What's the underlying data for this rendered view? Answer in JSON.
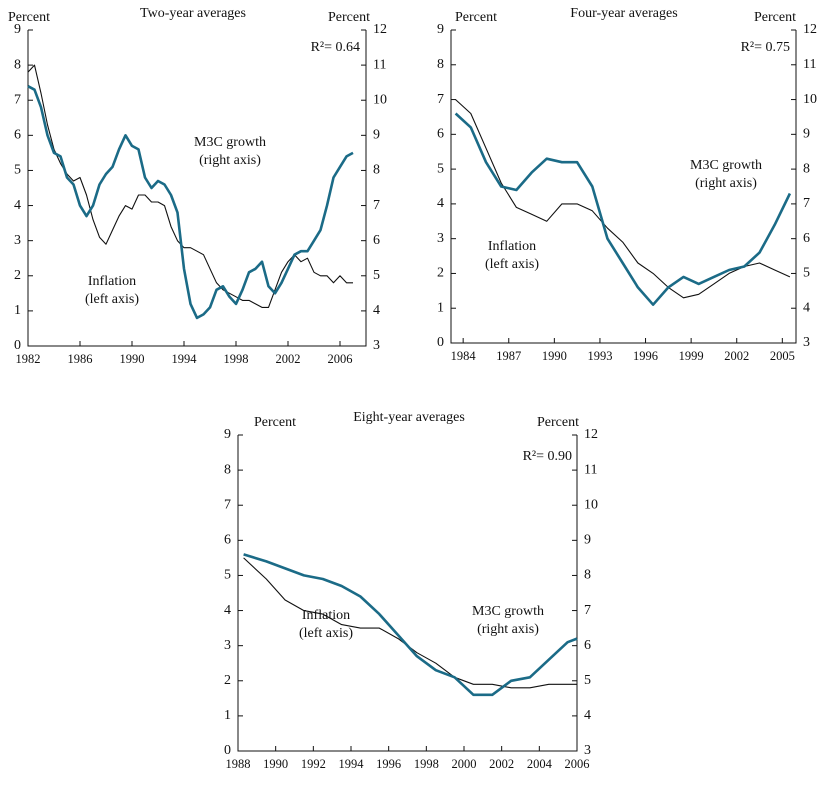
{
  "chart_data": [
    {
      "type": "line",
      "title": "Two-year averages",
      "ylabel": "Percent",
      "y2label": "Percent",
      "annotation": "R²= 0.64",
      "xlim": [
        1982,
        2008
      ],
      "xticks": [
        1982,
        1986,
        1990,
        1994,
        1998,
        2002,
        2006
      ],
      "ylim": [
        0,
        9
      ],
      "yticks": [
        0,
        1,
        2,
        3,
        4,
        5,
        6,
        7,
        8,
        9
      ],
      "y2lim": [
        3,
        12
      ],
      "y2ticks": [
        3,
        4,
        5,
        6,
        7,
        8,
        9,
        10,
        11,
        12
      ],
      "x": [
        1982,
        1982.5,
        1983,
        1983.5,
        1984,
        1984.5,
        1985,
        1985.5,
        1986,
        1986.5,
        1987,
        1987.5,
        1988,
        1988.5,
        1989,
        1989.5,
        1990,
        1990.5,
        1991,
        1991.5,
        1992,
        1992.5,
        1993,
        1993.5,
        1994,
        1994.5,
        1995,
        1995.5,
        1996,
        1996.5,
        1997,
        1997.5,
        1998,
        1998.5,
        1999,
        1999.5,
        2000,
        2000.5,
        2001,
        2001.5,
        2002,
        2002.5,
        2003,
        2003.5,
        2004,
        2004.5,
        2005,
        2005.5,
        2006,
        2006.5,
        2007
      ],
      "series": [
        {
          "name": "Inflation",
          "note": "(left axis)",
          "color": "#111111",
          "axis": "y",
          "values": [
            7.8,
            8.0,
            7.2,
            6.3,
            5.6,
            5.2,
            4.9,
            4.7,
            4.8,
            4.3,
            3.6,
            3.1,
            2.9,
            3.3,
            3.7,
            4.0,
            3.9,
            4.3,
            4.3,
            4.1,
            4.1,
            4.0,
            3.4,
            3.0,
            2.8,
            2.8,
            2.7,
            2.6,
            2.2,
            1.8,
            1.6,
            1.5,
            1.4,
            1.3,
            1.3,
            1.2,
            1.1,
            1.1,
            1.6,
            2.1,
            2.4,
            2.6,
            2.4,
            2.5,
            2.1,
            2.0,
            2.0,
            1.8,
            2.0,
            1.8,
            1.8
          ]
        },
        {
          "name": "M3C growth",
          "note": "(right axis)",
          "color": "#1b6b87",
          "axis": "y2",
          "values": [
            10.4,
            10.3,
            9.8,
            9.0,
            8.5,
            8.4,
            7.8,
            7.6,
            7.0,
            6.7,
            7.0,
            7.6,
            7.9,
            8.1,
            8.6,
            9.0,
            8.7,
            8.6,
            7.8,
            7.5,
            7.7,
            7.6,
            7.3,
            6.8,
            5.2,
            4.2,
            3.8,
            3.9,
            4.1,
            4.6,
            4.7,
            4.4,
            4.2,
            4.6,
            5.1,
            5.2,
            5.4,
            4.7,
            4.5,
            4.8,
            5.2,
            5.6,
            5.7,
            5.7,
            6.0,
            6.3,
            7.0,
            7.8,
            8.1,
            8.4,
            8.5
          ]
        }
      ]
    },
    {
      "type": "line",
      "title": "Four-year averages",
      "ylabel": "Percent",
      "y2label": "Percent",
      "annotation": "R²= 0.75",
      "xlim": [
        1983.2,
        2005.9
      ],
      "xticks": [
        1984,
        1987,
        1990,
        1993,
        1996,
        1999,
        2002,
        2005
      ],
      "ylim": [
        0,
        9
      ],
      "yticks": [
        0,
        1,
        2,
        3,
        4,
        5,
        6,
        7,
        8,
        9
      ],
      "y2lim": [
        3,
        12
      ],
      "y2ticks": [
        3,
        4,
        5,
        6,
        7,
        8,
        9,
        10,
        11,
        12
      ],
      "x": [
        1983.5,
        1984.5,
        1985.5,
        1986.5,
        1987.5,
        1988.5,
        1989.5,
        1990.5,
        1991.5,
        1992.5,
        1993.5,
        1994.5,
        1995.5,
        1996.5,
        1997.5,
        1998.5,
        1999.5,
        2000.5,
        2001.5,
        2002.5,
        2003.5,
        2004.5,
        2005.5
      ],
      "series": [
        {
          "name": "Inflation",
          "note": "(left axis)",
          "color": "#111111",
          "axis": "y",
          "values": [
            7.0,
            6.6,
            5.6,
            4.6,
            3.9,
            3.7,
            3.5,
            4.0,
            4.0,
            3.8,
            3.3,
            2.9,
            2.3,
            2.0,
            1.6,
            1.3,
            1.4,
            1.7,
            2.0,
            2.2,
            2.3,
            2.1,
            1.9
          ]
        },
        {
          "name": "M3C growth",
          "note": "(right axis)",
          "color": "#1b6b87",
          "axis": "y2",
          "values": [
            9.6,
            9.2,
            8.2,
            7.5,
            7.4,
            7.9,
            8.3,
            8.2,
            8.2,
            7.5,
            6.0,
            5.3,
            4.6,
            4.1,
            4.6,
            4.9,
            4.7,
            4.9,
            5.1,
            5.2,
            5.6,
            6.4,
            7.3
          ]
        }
      ]
    },
    {
      "type": "line",
      "title": "Eight-year averages",
      "ylabel": "Percent",
      "y2label": "Percent",
      "annotation": "R²= 0.90",
      "xlim": [
        1988,
        2006
      ],
      "xticks": [
        1988,
        1990,
        1992,
        1994,
        1996,
        1998,
        2000,
        2002,
        2004,
        2006
      ],
      "ylim": [
        0,
        9
      ],
      "yticks": [
        0,
        1,
        2,
        3,
        4,
        5,
        6,
        7,
        8,
        9
      ],
      "y2lim": [
        3,
        12
      ],
      "y2ticks": [
        3,
        4,
        5,
        6,
        7,
        8,
        9,
        10,
        11,
        12
      ],
      "x": [
        1988.3,
        1989.5,
        1990.5,
        1991.5,
        1992.5,
        1993.5,
        1994.5,
        1995.5,
        1996.5,
        1997.5,
        1998.5,
        1999.5,
        2000.5,
        2001.5,
        2002.5,
        2003.5,
        2004.5,
        2005.5,
        2006
      ],
      "series": [
        {
          "name": "Inflation",
          "note": "(left axis)",
          "color": "#111111",
          "axis": "y",
          "values": [
            5.5,
            4.9,
            4.3,
            4.0,
            3.9,
            3.6,
            3.5,
            3.5,
            3.2,
            2.8,
            2.5,
            2.1,
            1.9,
            1.9,
            1.8,
            1.8,
            1.9,
            1.9,
            1.9
          ]
        },
        {
          "name": "M3C growth",
          "note": "(right axis)",
          "color": "#1b6b87",
          "axis": "y2",
          "values": [
            8.6,
            8.4,
            8.2,
            8.0,
            7.9,
            7.7,
            7.4,
            6.9,
            6.3,
            5.7,
            5.3,
            5.1,
            4.6,
            4.6,
            5.0,
            5.1,
            5.6,
            6.1,
            6.2
          ]
        }
      ]
    }
  ]
}
